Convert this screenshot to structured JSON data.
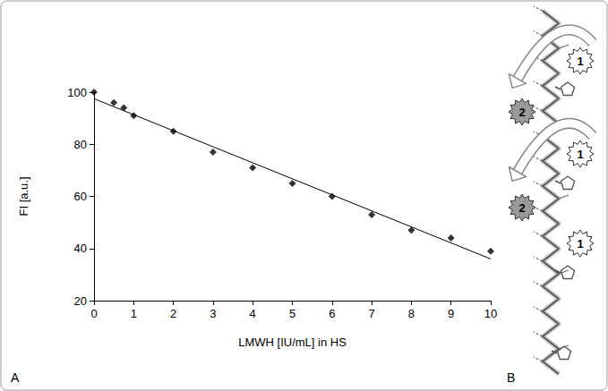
{
  "chart_data": {
    "type": "scatter",
    "xlabel": "LMWH [IU/mL] in HS",
    "ylabel": "FI [a.u.]",
    "xlim": [
      0,
      10
    ],
    "xticks": [
      0,
      1,
      2,
      3,
      4,
      5,
      6,
      7,
      8,
      9,
      10
    ],
    "ylim": [
      20,
      100
    ],
    "yticks": [
      20,
      40,
      60,
      80,
      100
    ],
    "grid": false,
    "series": [
      {
        "type": "scatter",
        "marker": "diamond",
        "color": "#000000",
        "x": [
          0,
          0.5,
          0.75,
          1,
          2,
          3,
          4,
          5,
          6,
          7,
          8,
          9,
          10
        ],
        "values": [
          100,
          96,
          94,
          91,
          85,
          77,
          71,
          65,
          60,
          53,
          47,
          44,
          39
        ]
      },
      {
        "type": "line",
        "line_style": "solid",
        "color": "#000000",
        "x": [
          0,
          10
        ],
        "values": [
          97.5,
          36
        ]
      }
    ]
  },
  "panel_labels": [
    "A",
    "B"
  ],
  "diagram": {
    "badges": [
      {
        "label": "1",
        "color": "#ffffff"
      },
      {
        "label": "2",
        "color": "#9a9a9a"
      },
      {
        "label": "1",
        "color": "#ffffff"
      },
      {
        "label": "2",
        "color": "#9a9a9a"
      },
      {
        "label": "1",
        "color": "#ffffff"
      }
    ]
  }
}
